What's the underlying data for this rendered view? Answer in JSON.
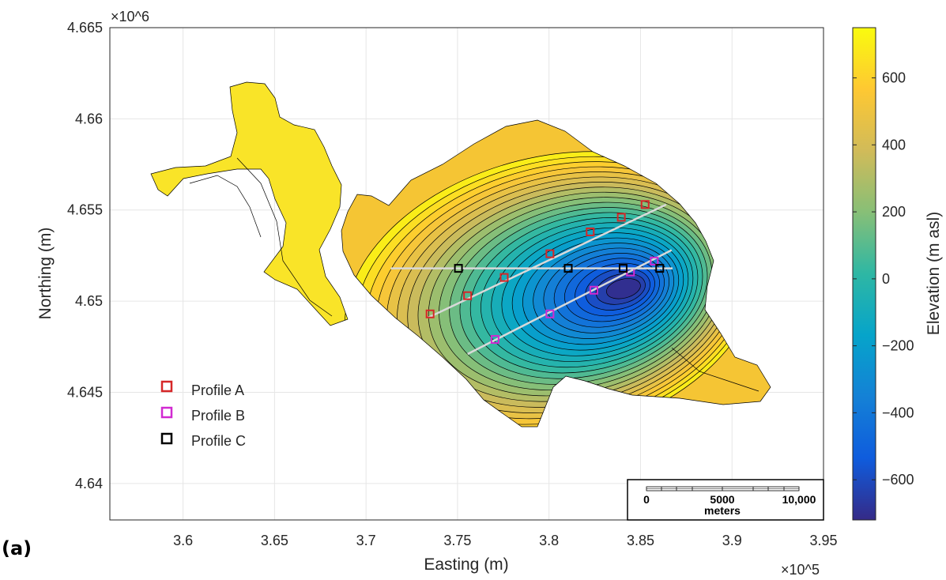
{
  "panel_label": "(a)",
  "colors": {
    "profile_a": "#d62728",
    "profile_b": "#d12ad1",
    "profile_c": "#000000",
    "profile_line": "#d9d9d9",
    "contour": "#000000"
  },
  "chart_data": {
    "type": "heatmap",
    "title": "",
    "xlabel": "Easting (m)",
    "ylabel": "Northing (m)",
    "x_exponent": "×10^5",
    "y_exponent": "×10^6",
    "xlim": [
      3.56,
      3.95
    ],
    "ylim": [
      4.638,
      4.665
    ],
    "x_ticks": [
      "3.6",
      "3.65",
      "3.7",
      "3.75",
      "3.8",
      "3.85",
      "3.9",
      "3.95"
    ],
    "y_ticks": [
      "4.64",
      "4.645",
      "4.65",
      "4.655",
      "4.66",
      "4.665"
    ],
    "grid": true,
    "colorbar": {
      "label": "Elevation (m asl)",
      "colormap": "parula",
      "range": [
        -720,
        750
      ],
      "ticks": [
        "600",
        "400",
        "200",
        "0",
        "−200",
        "−400",
        "−600"
      ],
      "tick_values": [
        600,
        400,
        200,
        0,
        -200,
        -400,
        -600
      ]
    },
    "legend": {
      "position": "bottom-left",
      "entries": [
        "Profile A",
        "Profile B",
        "Profile C"
      ]
    },
    "profiles": [
      {
        "name": "Profile A",
        "line": [
          [
            3.734,
            4.6491
          ],
          [
            3.864,
            4.6553
          ]
        ],
        "markers": [
          [
            3.735,
            4.6493
          ],
          [
            3.7555,
            4.6503
          ],
          [
            3.7755,
            4.6513
          ],
          [
            3.8005,
            4.6526
          ],
          [
            3.8225,
            4.6538
          ],
          [
            3.8395,
            4.6546
          ],
          [
            3.8525,
            4.6553
          ]
        ]
      },
      {
        "name": "Profile B",
        "line": [
          [
            3.7555,
            4.6471
          ],
          [
            3.867,
            4.6528
          ]
        ],
        "markers": [
          [
            3.7705,
            4.6479
          ],
          [
            3.8005,
            4.6493
          ],
          [
            3.8245,
            4.6506
          ],
          [
            3.8445,
            4.6516
          ],
          [
            3.8575,
            4.6522
          ]
        ]
      },
      {
        "name": "Profile C",
        "line": [
          [
            3.7135,
            4.6518
          ],
          [
            3.8675,
            4.6518
          ]
        ],
        "markers": [
          [
            3.7505,
            4.6518
          ],
          [
            3.8105,
            4.6518
          ],
          [
            3.8405,
            4.6518
          ],
          [
            3.8605,
            4.6518
          ]
        ]
      }
    ],
    "basin": {
      "deepest_point": [
        3.845,
        4.6506
      ],
      "deepest_elevation": -700,
      "rim_elevation": 700
    },
    "scale_bar": {
      "labels": [
        "0",
        "5000",
        "10,000"
      ],
      "values_m": [
        0,
        5000,
        10000
      ],
      "unit": "meters"
    }
  }
}
